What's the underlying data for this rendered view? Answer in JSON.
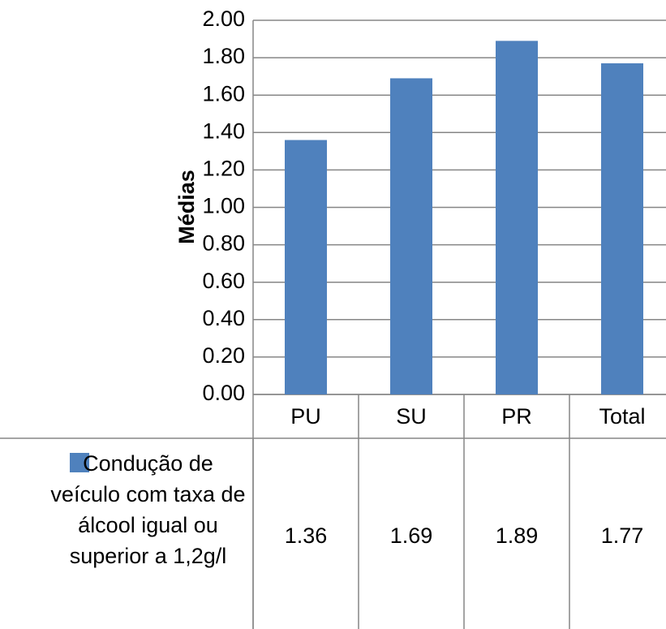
{
  "chart_data": {
    "type": "bar",
    "y_label": "Médias",
    "categories": [
      "PU",
      "SU",
      "PR",
      "Total"
    ],
    "series": [
      {
        "name": "Condução de veículo com taxa de álcool igual ou superior a 1,2g/l",
        "color": "#4f81bd",
        "values": [
          1.36,
          1.69,
          1.89,
          1.77
        ]
      }
    ],
    "ylim": [
      0,
      2
    ],
    "yticks": [
      {
        "value": 0,
        "label": "0.00"
      },
      {
        "value": 0.2,
        "label": "0.20"
      },
      {
        "value": 0.4,
        "label": "0.40"
      },
      {
        "value": 0.6,
        "label": "0.60"
      },
      {
        "value": 0.8,
        "label": "0.80"
      },
      {
        "value": 1,
        "label": "1.00"
      },
      {
        "value": 1.2,
        "label": "1.20"
      },
      {
        "value": 1.4,
        "label": "1.40"
      },
      {
        "value": 1.6,
        "label": "1.60"
      },
      {
        "value": 1.8,
        "label": "1.80"
      },
      {
        "value": 2,
        "label": "2.00"
      }
    ],
    "grid": true,
    "data_table": true
  }
}
